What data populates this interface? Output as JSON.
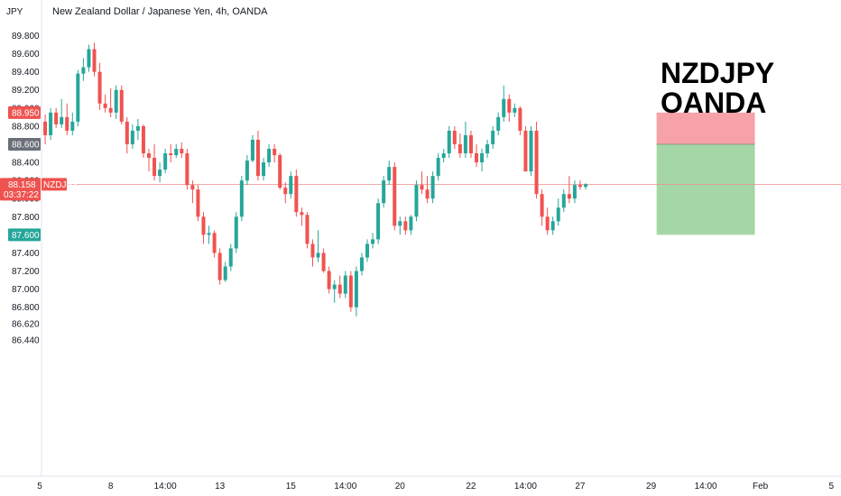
{
  "header": {
    "currency": "JPY",
    "title": "New Zealand Dollar / Japanese Yen, 4h, OANDA"
  },
  "watermark": {
    "line1": "NZDJPY",
    "line2": "OANDA"
  },
  "colors": {
    "up": "#26a69a",
    "down": "#ef5350",
    "stop_zone": "#f7a1a8",
    "target_zone": "#a5d6a7",
    "price_line": "#f28b8b"
  },
  "chart_data": {
    "type": "candlestick",
    "symbol": "NZDJPY",
    "interval": "4h",
    "ylim": [
      86.44,
      89.98
    ],
    "y_ticks": [
      "89.800",
      "89.600",
      "89.400",
      "89.200",
      "89.000",
      "88.800",
      "88.600",
      "88.400",
      "88.200",
      "88.000",
      "87.800",
      "87.600",
      "87.400",
      "87.200",
      "87.000",
      "86.800",
      "86.620",
      "86.440"
    ],
    "y_tick_values": [
      89.8,
      89.6,
      89.4,
      89.2,
      89.0,
      88.8,
      88.6,
      88.4,
      88.2,
      88.0,
      87.8,
      87.6,
      87.4,
      87.2,
      87.0,
      86.8,
      86.62,
      86.44
    ],
    "x_ticks": [
      {
        "label": "5",
        "bar": 0
      },
      {
        "label": "8",
        "bar": 13
      },
      {
        "label": "14:00",
        "bar": 23
      },
      {
        "label": "13",
        "bar": 33
      },
      {
        "label": "15",
        "bar": 46
      },
      {
        "label": "14:00",
        "bar": 56
      },
      {
        "label": "20",
        "bar": 66
      },
      {
        "label": "22",
        "bar": 79
      },
      {
        "label": "14:00",
        "bar": 89
      },
      {
        "label": "27",
        "bar": 99
      },
      {
        "label": "29",
        "bar": 112
      },
      {
        "label": "14:00",
        "bar": 122
      },
      {
        "label": "Feb",
        "bar": 132
      },
      {
        "label": "5",
        "bar": 145
      }
    ],
    "current_price": {
      "label": "88.158",
      "value": 88.158,
      "countdown": "03:37:22",
      "symbol": "NZDJPY"
    },
    "price_tags": [
      {
        "label": "88.950",
        "value": 88.95,
        "color": "#ef5350"
      },
      {
        "label": "88.600",
        "value": 88.6,
        "color": "#6b6f7a"
      },
      {
        "label": "87.600",
        "value": 87.6,
        "color": "#26a69a"
      }
    ],
    "position": {
      "entry": 88.6,
      "stop": 88.95,
      "target": 87.6,
      "start_bar": 113,
      "end_bar": 131
    },
    "candles": [
      [
        88.45,
        88.88,
        88.42,
        88.85
      ],
      [
        88.85,
        88.93,
        88.6,
        88.7
      ],
      [
        88.7,
        89.0,
        88.65,
        88.95
      ],
      [
        88.95,
        89.0,
        88.78,
        88.82
      ],
      [
        88.82,
        89.1,
        88.78,
        88.9
      ],
      [
        88.9,
        89.05,
        88.7,
        88.75
      ],
      [
        88.75,
        88.95,
        88.7,
        88.85
      ],
      [
        88.85,
        89.42,
        88.8,
        89.38
      ],
      [
        89.38,
        89.55,
        89.3,
        89.45
      ],
      [
        89.45,
        89.7,
        89.4,
        89.65
      ],
      [
        89.65,
        89.72,
        89.35,
        89.4
      ],
      [
        89.4,
        89.5,
        88.98,
        89.05
      ],
      [
        89.05,
        89.15,
        88.95,
        89.0
      ],
      [
        89.0,
        89.22,
        88.9,
        88.95
      ],
      [
        88.95,
        89.25,
        88.88,
        89.2
      ],
      [
        89.2,
        89.25,
        88.82,
        88.85
      ],
      [
        88.85,
        88.9,
        88.5,
        88.6
      ],
      [
        88.6,
        88.82,
        88.55,
        88.75
      ],
      [
        88.75,
        88.88,
        88.65,
        88.8
      ],
      [
        88.8,
        88.82,
        88.45,
        88.5
      ],
      [
        88.5,
        88.55,
        88.3,
        88.45
      ],
      [
        88.45,
        88.6,
        88.2,
        88.25
      ],
      [
        88.25,
        88.4,
        88.18,
        88.32
      ],
      [
        88.32,
        88.55,
        88.28,
        88.5
      ],
      [
        88.5,
        88.6,
        88.4,
        88.48
      ],
      [
        88.48,
        88.6,
        88.45,
        88.55
      ],
      [
        88.55,
        88.62,
        88.45,
        88.5
      ],
      [
        88.5,
        88.55,
        88.1,
        88.15
      ],
      [
        88.15,
        88.2,
        87.95,
        88.1
      ],
      [
        88.1,
        88.15,
        87.75,
        87.8
      ],
      [
        87.8,
        87.85,
        87.5,
        87.6
      ],
      [
        87.6,
        87.7,
        87.5,
        87.62
      ],
      [
        87.62,
        87.65,
        87.35,
        87.4
      ],
      [
        87.4,
        87.45,
        87.05,
        87.1
      ],
      [
        87.1,
        87.3,
        87.08,
        87.25
      ],
      [
        87.25,
        87.5,
        87.2,
        87.45
      ],
      [
        87.45,
        87.85,
        87.4,
        87.8
      ],
      [
        87.8,
        88.25,
        87.75,
        88.2
      ],
      [
        88.2,
        88.48,
        88.15,
        88.42
      ],
      [
        88.42,
        88.7,
        88.4,
        88.65
      ],
      [
        88.65,
        88.75,
        88.2,
        88.25
      ],
      [
        88.25,
        88.45,
        88.2,
        88.4
      ],
      [
        88.4,
        88.6,
        88.35,
        88.55
      ],
      [
        88.55,
        88.6,
        88.4,
        88.48
      ],
      [
        88.48,
        88.5,
        88.1,
        88.12
      ],
      [
        88.12,
        88.18,
        87.95,
        88.05
      ],
      [
        88.05,
        88.3,
        88.0,
        88.25
      ],
      [
        88.25,
        88.32,
        87.8,
        87.85
      ],
      [
        87.85,
        87.9,
        87.7,
        87.82
      ],
      [
        87.82,
        87.85,
        87.45,
        87.5
      ],
      [
        87.5,
        87.55,
        87.25,
        87.35
      ],
      [
        87.35,
        87.65,
        87.3,
        87.4
      ],
      [
        87.4,
        87.45,
        87.18,
        87.2
      ],
      [
        87.2,
        87.25,
        86.95,
        87.0
      ],
      [
        87.0,
        87.1,
        86.85,
        87.05
      ],
      [
        87.05,
        87.15,
        86.9,
        86.95
      ],
      [
        86.95,
        87.2,
        86.9,
        87.15
      ],
      [
        87.15,
        87.2,
        86.75,
        86.8
      ],
      [
        86.8,
        87.25,
        86.7,
        87.2
      ],
      [
        87.2,
        87.4,
        87.15,
        87.35
      ],
      [
        87.35,
        87.55,
        87.3,
        87.5
      ],
      [
        87.5,
        87.62,
        87.45,
        87.55
      ],
      [
        87.55,
        88.0,
        87.5,
        87.95
      ],
      [
        87.95,
        88.25,
        87.9,
        88.2
      ],
      [
        88.2,
        88.42,
        88.15,
        88.35
      ],
      [
        88.35,
        88.4,
        87.65,
        87.7
      ],
      [
        87.7,
        87.8,
        87.6,
        87.75
      ],
      [
        87.75,
        87.8,
        87.6,
        87.65
      ],
      [
        87.65,
        87.82,
        87.6,
        87.8
      ],
      [
        87.8,
        88.2,
        87.75,
        88.15
      ],
      [
        88.15,
        88.3,
        88.05,
        88.1
      ],
      [
        88.1,
        88.25,
        87.95,
        88.0
      ],
      [
        88.0,
        88.3,
        87.95,
        88.25
      ],
      [
        88.25,
        88.5,
        88.2,
        88.45
      ],
      [
        88.45,
        88.55,
        88.4,
        88.5
      ],
      [
        88.5,
        88.8,
        88.45,
        88.75
      ],
      [
        88.75,
        88.8,
        88.55,
        88.6
      ],
      [
        88.6,
        88.72,
        88.45,
        88.5
      ],
      [
        88.5,
        88.85,
        88.45,
        88.7
      ],
      [
        88.7,
        88.75,
        88.45,
        88.5
      ],
      [
        88.5,
        88.6,
        88.35,
        88.4
      ],
      [
        88.4,
        88.55,
        88.3,
        88.5
      ],
      [
        88.5,
        88.65,
        88.45,
        88.6
      ],
      [
        88.6,
        88.8,
        88.55,
        88.75
      ],
      [
        88.75,
        88.95,
        88.7,
        88.9
      ],
      [
        88.9,
        89.25,
        88.85,
        89.1
      ],
      [
        89.1,
        89.15,
        88.85,
        88.95
      ],
      [
        88.95,
        89.05,
        88.9,
        89.0
      ],
      [
        89.0,
        89.02,
        88.7,
        88.75
      ],
      [
        88.75,
        88.8,
        88.3,
        88.3
      ],
      [
        88.3,
        88.8,
        88.25,
        88.75
      ],
      [
        88.75,
        88.85,
        88.0,
        88.05
      ],
      [
        88.05,
        88.1,
        87.7,
        87.8
      ],
      [
        87.8,
        87.9,
        87.6,
        87.65
      ],
      [
        87.65,
        87.8,
        87.6,
        87.75
      ],
      [
        87.75,
        88.0,
        87.7,
        87.9
      ],
      [
        87.9,
        88.1,
        87.85,
        88.05
      ],
      [
        88.05,
        88.25,
        87.95,
        88.0
      ],
      [
        88.0,
        88.2,
        87.95,
        88.15
      ],
      [
        88.15,
        88.2,
        88.1,
        88.13
      ],
      [
        88.13,
        88.17,
        88.1,
        88.158
      ]
    ]
  }
}
